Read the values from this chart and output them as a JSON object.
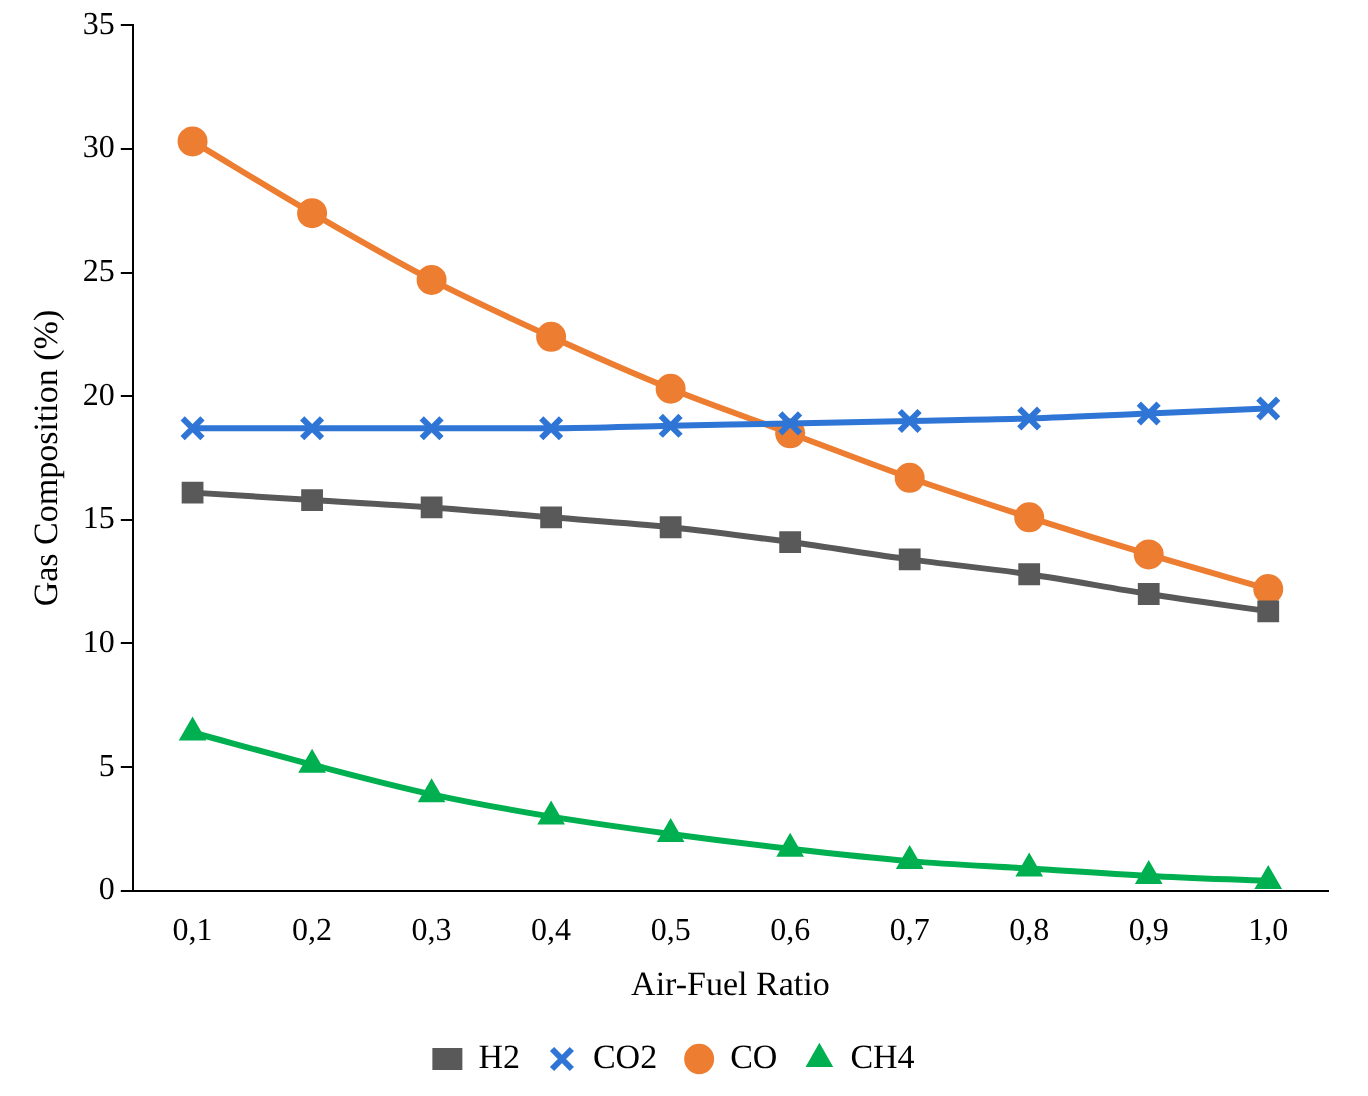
{
  "chart_data": {
    "type": "line",
    "xlabel": "Air-Fuel Ratio",
    "ylabel": "Gas Composition (%)",
    "categories": [
      "0,1",
      "0,2",
      "0,3",
      "0,4",
      "0,5",
      "0,6",
      "0,7",
      "0,8",
      "0,9",
      "1,0"
    ],
    "ylim": [
      0,
      35
    ],
    "yticks": [
      0,
      5,
      10,
      15,
      20,
      25,
      30,
      35
    ],
    "grid": false,
    "legend": "bottom",
    "series": [
      {
        "name": "H2",
        "color": "#595959",
        "marker": "square",
        "values": [
          16.1,
          15.8,
          15.5,
          15.1,
          14.7,
          14.1,
          13.4,
          12.8,
          12.0,
          11.3
        ]
      },
      {
        "name": "CO2",
        "color": "#2e75d6",
        "marker": "cross",
        "values": [
          18.7,
          18.7,
          18.7,
          18.7,
          18.8,
          18.9,
          19.0,
          19.1,
          19.3,
          19.5
        ]
      },
      {
        "name": "CO",
        "color": "#ed7d31",
        "marker": "circle",
        "values": [
          30.3,
          27.4,
          24.7,
          22.4,
          20.3,
          18.5,
          16.7,
          15.1,
          13.6,
          12.2
        ]
      },
      {
        "name": "CH4",
        "color": "#00b050",
        "marker": "triangle",
        "values": [
          6.4,
          5.1,
          3.9,
          3.0,
          2.3,
          1.7,
          1.2,
          0.9,
          0.6,
          0.4
        ]
      }
    ]
  }
}
